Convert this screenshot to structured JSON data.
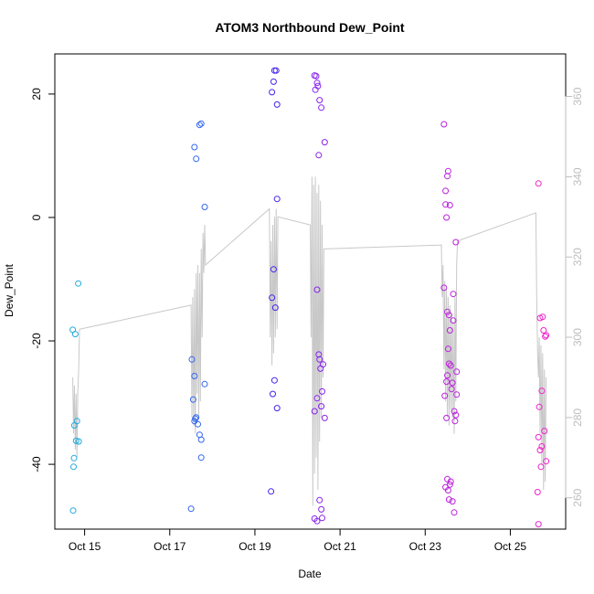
{
  "chart_data": {
    "type": "scatter",
    "title": "ATOM3 Northbound Dew_Point",
    "xlabel": "Date",
    "ylabel": "Dew_Point",
    "ylim": [
      -50.5,
      26.5
    ],
    "y_ticks": [
      -40,
      -20,
      0,
      20
    ],
    "y2lim": [
      252.2,
      370.6
    ],
    "y2_ticks": [
      260,
      280,
      300,
      320,
      340,
      360
    ],
    "xlim": [
      14.3,
      26.3
    ],
    "x_ticks": [
      {
        "value": 15,
        "label": "Oct 15"
      },
      {
        "value": 17,
        "label": "Oct 17"
      },
      {
        "value": 19,
        "label": "Oct 19"
      },
      {
        "value": 21,
        "label": "Oct 21"
      },
      {
        "value": 23,
        "label": "Oct 23"
      },
      {
        "value": 25,
        "label": "Oct 25"
      }
    ],
    "grid": false,
    "legend": "none",
    "colors": {
      "cyan": "#22aadd",
      "blue": "#3366ee",
      "indigo": "#4422ee",
      "violet": "#8822ee",
      "purple": "#bb22dd",
      "magenta": "#ee22cc",
      "secondary_line": "#c8c8c8",
      "right_axis": "#bdbdbd"
    },
    "series": [
      {
        "role": "scatter",
        "color_key": "cyan",
        "points": [
          [
            14.72,
            -18.2
          ],
          [
            14.78,
            -18.9
          ],
          [
            14.85,
            -10.7
          ],
          [
            14.76,
            -33.7
          ],
          [
            14.82,
            -33.0
          ],
          [
            14.8,
            -36.2
          ],
          [
            14.86,
            -36.3
          ],
          [
            14.75,
            -39.0
          ],
          [
            14.74,
            -40.4
          ],
          [
            14.73,
            -47.5
          ]
        ]
      },
      {
        "role": "scatter",
        "color_key": "blue",
        "points": [
          [
            17.58,
            11.4
          ],
          [
            17.62,
            9.5
          ],
          [
            17.7,
            15.0
          ],
          [
            17.74,
            15.2
          ],
          [
            17.82,
            1.7
          ],
          [
            17.52,
            -23.0
          ],
          [
            17.58,
            -25.7
          ],
          [
            17.82,
            -27.0
          ],
          [
            17.55,
            -29.5
          ],
          [
            17.62,
            -32.4
          ],
          [
            17.6,
            -32.6
          ],
          [
            17.58,
            -33.0
          ],
          [
            17.66,
            -33.5
          ],
          [
            17.7,
            -35.2
          ],
          [
            17.74,
            -36.0
          ],
          [
            17.74,
            -38.9
          ],
          [
            17.5,
            -47.2
          ]
        ]
      },
      {
        "role": "scatter",
        "color_key": "indigo",
        "points": [
          [
            19.46,
            23.8
          ],
          [
            19.5,
            23.8
          ],
          [
            19.44,
            22.0
          ],
          [
            19.4,
            20.3
          ],
          [
            19.52,
            18.3
          ],
          [
            19.52,
            3.0
          ],
          [
            19.44,
            -8.4
          ],
          [
            19.4,
            -13.0
          ],
          [
            19.48,
            -14.6
          ],
          [
            19.46,
            -26.4
          ],
          [
            19.42,
            -28.6
          ],
          [
            19.52,
            -30.9
          ],
          [
            19.38,
            -44.4
          ]
        ]
      },
      {
        "role": "scatter",
        "color_key": "violet",
        "points": [
          [
            20.4,
            23.0
          ],
          [
            20.44,
            22.9
          ],
          [
            20.46,
            21.8
          ],
          [
            20.48,
            21.3
          ],
          [
            20.42,
            20.7
          ],
          [
            20.52,
            19.0
          ],
          [
            20.56,
            17.8
          ],
          [
            20.64,
            12.2
          ],
          [
            20.5,
            10.1
          ],
          [
            20.46,
            -11.7
          ],
          [
            20.5,
            -22.2
          ],
          [
            20.52,
            -23.0
          ],
          [
            20.6,
            -23.8
          ],
          [
            20.54,
            -24.5
          ],
          [
            20.58,
            -28.2
          ],
          [
            20.46,
            -29.3
          ],
          [
            20.56,
            -30.6
          ],
          [
            20.4,
            -31.4
          ],
          [
            20.64,
            -32.5
          ],
          [
            20.52,
            -45.8
          ],
          [
            20.56,
            -47.3
          ],
          [
            20.4,
            -48.8
          ],
          [
            20.46,
            -49.2
          ],
          [
            20.58,
            -48.7
          ]
        ]
      },
      {
        "role": "scatter",
        "color_key": "purple",
        "points": [
          [
            23.44,
            15.1
          ],
          [
            23.54,
            7.5
          ],
          [
            23.52,
            6.7
          ],
          [
            23.48,
            4.3
          ],
          [
            23.48,
            2.1
          ],
          [
            23.58,
            2.0
          ],
          [
            23.5,
            0.0
          ],
          [
            23.72,
            -4.0
          ],
          [
            23.44,
            -11.4
          ],
          [
            23.66,
            -12.4
          ],
          [
            23.52,
            -15.3
          ],
          [
            23.56,
            -15.8
          ],
          [
            23.66,
            -16.7
          ],
          [
            23.58,
            -18.3
          ],
          [
            23.54,
            -21.3
          ],
          [
            23.56,
            -23.7
          ],
          [
            23.6,
            -24.0
          ],
          [
            23.74,
            -25.0
          ],
          [
            23.52,
            -25.6
          ],
          [
            23.5,
            -26.6
          ],
          [
            23.64,
            -26.8
          ],
          [
            23.62,
            -27.8
          ],
          [
            23.74,
            -28.7
          ],
          [
            23.46,
            -28.9
          ],
          [
            23.68,
            -31.4
          ],
          [
            23.72,
            -32.0
          ],
          [
            23.5,
            -32.5
          ],
          [
            23.7,
            -33.0
          ],
          [
            23.52,
            -42.4
          ],
          [
            23.6,
            -42.8
          ],
          [
            23.58,
            -43.3
          ],
          [
            23.48,
            -43.7
          ],
          [
            23.54,
            -44.2
          ],
          [
            23.56,
            -45.7
          ],
          [
            23.64,
            -46.0
          ],
          [
            23.68,
            -47.8
          ]
        ]
      },
      {
        "role": "scatter",
        "color_key": "magenta",
        "points": [
          [
            25.66,
            5.5
          ],
          [
            25.76,
            -16.1
          ],
          [
            25.7,
            -16.3
          ],
          [
            25.78,
            -18.3
          ],
          [
            25.84,
            -19.1
          ],
          [
            25.82,
            -19.3
          ],
          [
            25.74,
            -28.1
          ],
          [
            25.68,
            -30.7
          ],
          [
            25.8,
            -34.6
          ],
          [
            25.66,
            -35.6
          ],
          [
            25.74,
            -37.1
          ],
          [
            25.7,
            -37.7
          ],
          [
            25.84,
            -39.5
          ],
          [
            25.72,
            -40.4
          ],
          [
            25.64,
            -44.5
          ],
          [
            25.66,
            -49.7
          ]
        ]
      }
    ],
    "secondary_series": [
      {
        "role": "line",
        "axis": "right",
        "color_key": "secondary_line",
        "points": [
          [
            14.72,
            290
          ],
          [
            14.74,
            276
          ],
          [
            14.76,
            288
          ],
          [
            14.78,
            272
          ],
          [
            14.8,
            286
          ],
          [
            14.82,
            270
          ],
          [
            14.84,
            287
          ],
          [
            14.86,
            292
          ],
          [
            14.88,
            302
          ],
          [
            17.5,
            308
          ],
          [
            17.52,
            280
          ],
          [
            17.54,
            310
          ],
          [
            17.56,
            278
          ],
          [
            17.58,
            312
          ],
          [
            17.6,
            276
          ],
          [
            17.62,
            316
          ],
          [
            17.64,
            286
          ],
          [
            17.66,
            318
          ],
          [
            17.68,
            280
          ],
          [
            17.7,
            316
          ],
          [
            17.72,
            284
          ],
          [
            17.74,
            322
          ],
          [
            17.76,
            300
          ],
          [
            17.78,
            326
          ],
          [
            17.8,
            316
          ],
          [
            17.82,
            328
          ],
          [
            17.84,
            318
          ],
          [
            19.34,
            332
          ],
          [
            19.36,
            300
          ],
          [
            19.38,
            324
          ],
          [
            19.4,
            293
          ],
          [
            19.42,
            328
          ],
          [
            19.44,
            296
          ],
          [
            19.46,
            330
          ],
          [
            19.48,
            300
          ],
          [
            19.5,
            332
          ],
          [
            19.52,
            302
          ],
          [
            19.54,
            330
          ],
          [
            20.3,
            328
          ],
          [
            20.32,
            300
          ],
          [
            20.34,
            340
          ],
          [
            20.36,
            258
          ],
          [
            20.38,
            338
          ],
          [
            20.4,
            266
          ],
          [
            20.42,
            340
          ],
          [
            20.44,
            270
          ],
          [
            20.46,
            336
          ],
          [
            20.48,
            262
          ],
          [
            20.5,
            338
          ],
          [
            20.52,
            274
          ],
          [
            20.54,
            334
          ],
          [
            20.56,
            280
          ],
          [
            20.58,
            328
          ],
          [
            20.6,
            290
          ],
          [
            20.62,
            322
          ],
          [
            23.38,
            323
          ],
          [
            23.4,
            310
          ],
          [
            23.42,
            318
          ],
          [
            23.44,
            292
          ],
          [
            23.46,
            314
          ],
          [
            23.48,
            284
          ],
          [
            23.5,
            312
          ],
          [
            23.52,
            280
          ],
          [
            23.54,
            310
          ],
          [
            23.56,
            278
          ],
          [
            23.58,
            308
          ],
          [
            23.6,
            282
          ],
          [
            23.62,
            306
          ],
          [
            23.64,
            280
          ],
          [
            23.66,
            304
          ],
          [
            23.68,
            276
          ],
          [
            23.7,
            310
          ],
          [
            23.72,
            284
          ],
          [
            23.74,
            318
          ],
          [
            23.76,
            324
          ],
          [
            25.6,
            331
          ],
          [
            25.62,
            310
          ],
          [
            25.64,
            296
          ],
          [
            25.66,
            290
          ],
          [
            25.68,
            300
          ],
          [
            25.7,
            276
          ],
          [
            25.72,
            298
          ],
          [
            25.74,
            268
          ],
          [
            25.76,
            296
          ],
          [
            25.78,
            262
          ],
          [
            25.8,
            292
          ],
          [
            25.82,
            264
          ],
          [
            25.84,
            290
          ]
        ]
      }
    ]
  }
}
